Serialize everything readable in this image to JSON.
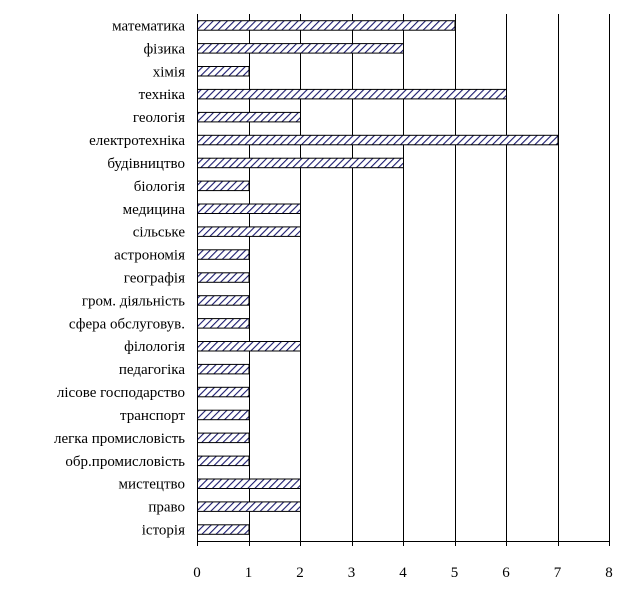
{
  "chart_data": {
    "type": "bar",
    "orientation": "horizontal",
    "title": "",
    "xlabel": "",
    "ylabel": "",
    "xlim": [
      0,
      8
    ],
    "x_ticks": [
      "0",
      "1",
      "2",
      "3",
      "4",
      "5",
      "6",
      "7",
      "8"
    ],
    "grid": "vertical gridlines at each integer",
    "legend": "none",
    "bar_style": "diagonal hatch, navy on white",
    "colors": {
      "hatch": "#1a1a6e",
      "outline": "#000000",
      "grid": "#000000"
    },
    "categories": [
      "математика",
      "фізика",
      "хімія",
      "техніка",
      "геологія",
      "електротехніка",
      "будівництво",
      "біологія",
      "медицина",
      "сільське",
      "астрономія",
      "географія",
      "гром. діяльність",
      "сфера обслуговув.",
      "філологія",
      "педагогіка",
      "лісове господарство",
      "транспорт",
      "легка промисловість",
      "обр.промисловість",
      "мистецтво",
      "право",
      "історія"
    ],
    "values": [
      5,
      4,
      1,
      6,
      2,
      7,
      4,
      1,
      2,
      2,
      1,
      1,
      1,
      1,
      2,
      1,
      1,
      1,
      1,
      1,
      2,
      2,
      1
    ]
  }
}
